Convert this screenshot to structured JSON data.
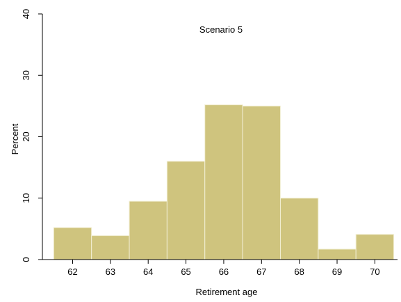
{
  "chart_data": {
    "type": "bar",
    "subtype": "histogram",
    "annotation": "Scenario 5",
    "xlabel": "Retirement age",
    "ylabel": "Percent",
    "bins": [
      {
        "age": "62",
        "x_from": 61.5,
        "x_to": 62.5,
        "percent": 5.2
      },
      {
        "age": "63",
        "x_from": 62.5,
        "x_to": 63.5,
        "percent": 3.9
      },
      {
        "age": "64",
        "x_from": 63.5,
        "x_to": 64.5,
        "percent": 9.5
      },
      {
        "age": "65",
        "x_from": 64.5,
        "x_to": 65.5,
        "percent": 16.0
      },
      {
        "age": "66",
        "x_from": 65.5,
        "x_to": 66.5,
        "percent": 25.2
      },
      {
        "age": "67",
        "x_from": 66.5,
        "x_to": 67.5,
        "percent": 25.0
      },
      {
        "age": "68",
        "x_from": 67.5,
        "x_to": 68.5,
        "percent": 10.0
      },
      {
        "age": "69",
        "x_from": 68.5,
        "x_to": 69.5,
        "percent": 1.7
      },
      {
        "age": "70",
        "x_from": 69.5,
        "x_to": 70.5,
        "percent": 4.1
      }
    ],
    "x_ticks": [
      "62",
      "63",
      "64",
      "65",
      "66",
      "67",
      "68",
      "69",
      "70"
    ],
    "y_ticks": [
      "0",
      "10",
      "20",
      "30",
      "40"
    ],
    "xlim": [
      61.2,
      70.6
    ],
    "ylim": [
      0,
      40
    ],
    "grid": false,
    "bar_color": "#cfc47e",
    "bar_edge_color": "#f2efd4"
  }
}
